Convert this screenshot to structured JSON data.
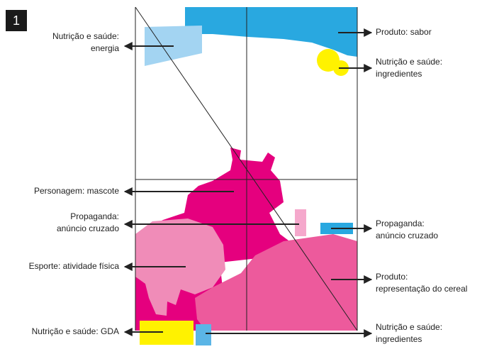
{
  "badge": "1",
  "labels": [
    {
      "lines": [
        "Nutrição e saúde:",
        "energia"
      ],
      "side": "left"
    },
    {
      "lines": [
        "Produto: sabor"
      ],
      "side": "right"
    },
    {
      "lines": [
        "Nutrição e saúde:",
        "ingredientes"
      ],
      "side": "right"
    },
    {
      "lines": [
        "Personagem: mascote"
      ],
      "side": "left"
    },
    {
      "lines": [
        "Propaganda:",
        "anúncio cruzado"
      ],
      "side": "left"
    },
    {
      "lines": [
        "Propaganda:",
        "anúncio cruzado"
      ],
      "side": "right"
    },
    {
      "lines": [
        "Esporte: atividade física"
      ],
      "side": "left"
    },
    {
      "lines": [
        "Produto:",
        "representação do cereal"
      ],
      "side": "right"
    },
    {
      "lines": [
        "Nutrição e saúde: GDA"
      ],
      "side": "left"
    },
    {
      "lines": [
        "Nutrição e saúde:",
        "ingredientes"
      ],
      "side": "right"
    }
  ]
}
